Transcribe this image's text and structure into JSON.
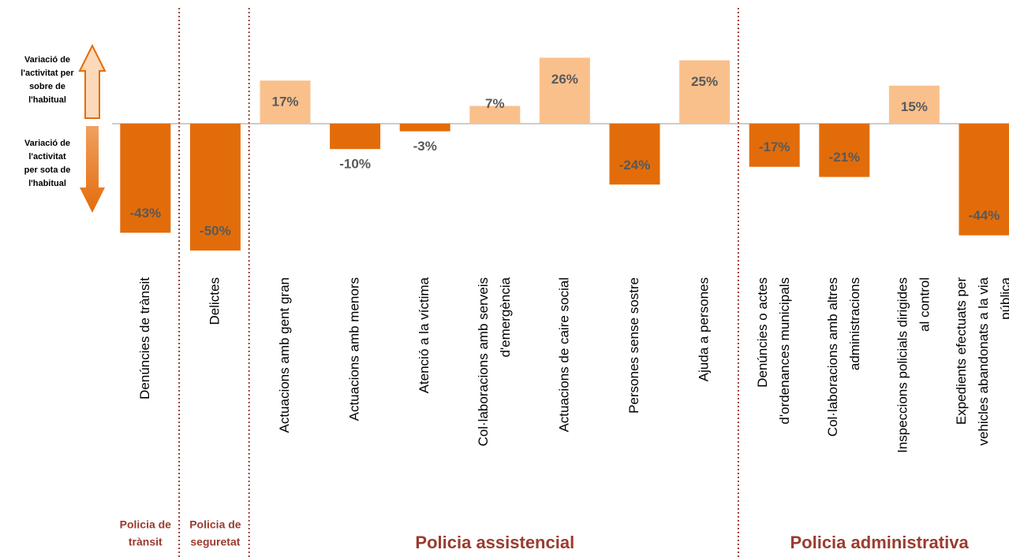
{
  "chart_data": {
    "type": "bar",
    "categories": [
      [
        "Denúncies de trànsit"
      ],
      [
        "Delictes"
      ],
      [
        "Actuacions amb gent gran"
      ],
      [
        "Actuacions amb menors"
      ],
      [
        "Atenció a la víctima"
      ],
      [
        "Col·laboracions amb serveis",
        "d'emergència"
      ],
      [
        "Actuacions de caire social"
      ],
      [
        "Persones sense sostre"
      ],
      [
        "Ajuda a persones"
      ],
      [
        "Denúncies o actes",
        "d'ordenances municipals"
      ],
      [
        "Col·laboracions amb altres",
        "administracions"
      ],
      [
        "Inspeccions policials dirigides",
        "al control"
      ],
      [
        "Expedients efectuats per",
        "vehicles abandonats a la via",
        "pública"
      ]
    ],
    "values": [
      -43,
      -50,
      17,
      -10,
      -3,
      7,
      26,
      -24,
      25,
      -17,
      -21,
      15,
      -44
    ],
    "value_labels": [
      "-43%",
      "-50%",
      "17%",
      "-10%",
      "-3%",
      "7%",
      "26%",
      "-24%",
      "25%",
      "-17%",
      "-21%",
      "15%",
      "-44%"
    ],
    "positive_color": "#f9c08c",
    "negative_color": "#e36c0a",
    "groups": [
      {
        "label": [
          "Policia de",
          "trànsit"
        ],
        "count": 1
      },
      {
        "label": [
          "Policia de",
          "seguretat"
        ],
        "count": 1
      },
      {
        "label": [
          "Policia assistencial"
        ],
        "count": 7
      },
      {
        "label": [
          "Policia administrativa"
        ],
        "count": 4
      }
    ],
    "above_label": [
      "Variació de",
      "l'activitat per",
      "sobre de",
      "l'habitual"
    ],
    "below_label": [
      "Variació de",
      "l'activitat",
      "per sota de",
      "l'habitual"
    ]
  }
}
